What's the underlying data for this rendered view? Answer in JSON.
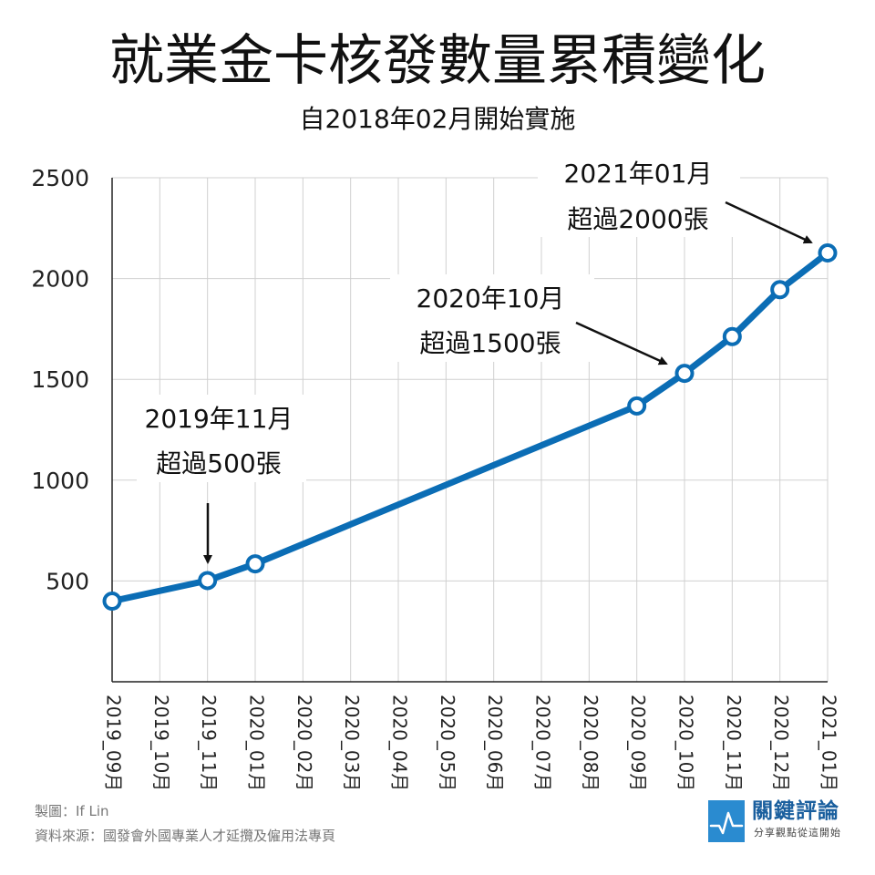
{
  "title": "就業金卡核發數量累積變化",
  "subtitle": "自2018年02月開始實施",
  "colors": {
    "line": "#0b6db5",
    "grid": "#d0d0d0",
    "axis": "#222222",
    "brand": "#2a8bd0",
    "brand_text": "#1a5f9e"
  },
  "chart_data": {
    "type": "line",
    "title": "就業金卡核發數量累積變化",
    "subtitle": "自2018年02月開始實施",
    "xlabel": "",
    "ylabel": "",
    "categories": [
      "2019_09月",
      "2019_10月",
      "2019_11月",
      "2020_01月",
      "2020_02月",
      "2020_03月",
      "2020_04月",
      "2020_05月",
      "2020_06月",
      "2020_07月",
      "2020_08月",
      "2020_09月",
      "2020_10月",
      "2020_11月",
      "2020_12月",
      "2021_01月"
    ],
    "values": [
      400,
      null,
      502,
      585,
      null,
      null,
      null,
      null,
      null,
      null,
      null,
      1368,
      1530,
      1712,
      1945,
      2127
    ],
    "y_ticks": [
      500,
      1000,
      1500,
      2000,
      2500
    ],
    "ylim": [
      0,
      2500
    ],
    "grid": true,
    "annotations": [
      {
        "name": "annotation-2019-11",
        "lines": [
          "2019年11月",
          "超過500張"
        ],
        "target": "2019_11月"
      },
      {
        "name": "annotation-2020-10",
        "lines": [
          "2020年10月",
          "超過1500張"
        ],
        "target": "2020_10月"
      },
      {
        "name": "annotation-2021-01",
        "lines": [
          "2021年01月",
          "超過2000張"
        ],
        "target": "2021_01月"
      }
    ]
  },
  "footer": {
    "credit": "製圖：If Lin",
    "source": "資料來源：國發會外國專業人才延攬及僱用法專頁"
  },
  "brand": {
    "name": "關鍵評論",
    "tagline": "分享觀點從這開始",
    "icon": "pulse-icon"
  }
}
